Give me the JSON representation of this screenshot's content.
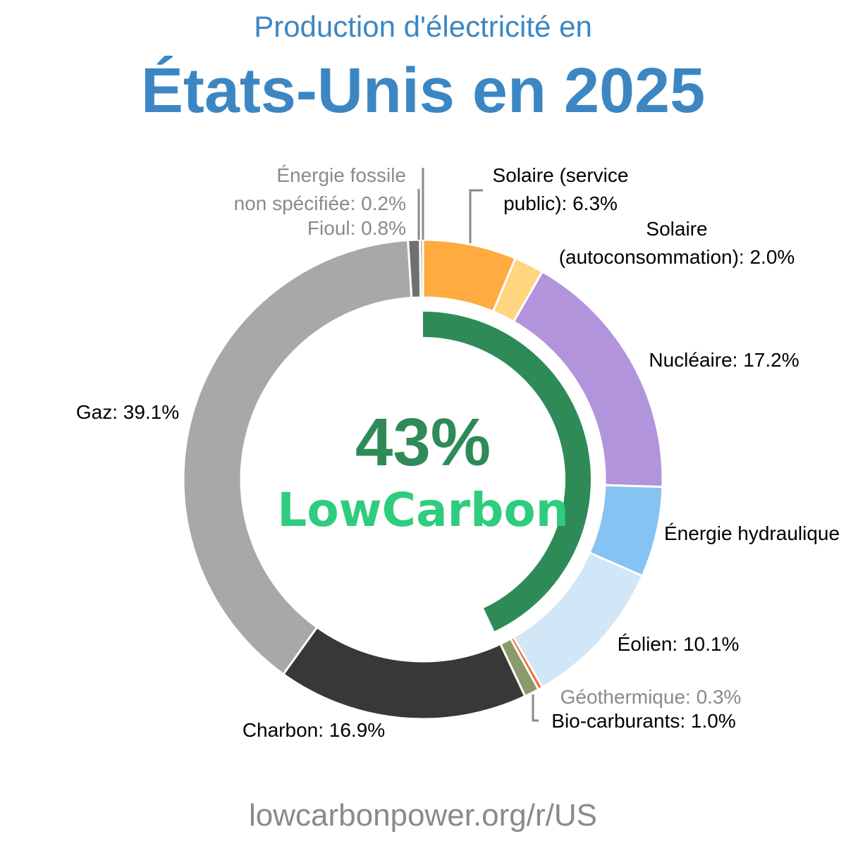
{
  "header": {
    "subtitle": "Production d'électricité en",
    "title": "États-Unis en 2025"
  },
  "center": {
    "value": "43%",
    "brand": "LowCarbon"
  },
  "footer": {
    "url": "lowcarbonpower.org/r/US"
  },
  "colors": {
    "title": "#3c87c3",
    "lowcarbon_ring": "#2e8b57",
    "brand_text": "#2ecc7f",
    "muted_label": "#8a8a8a"
  },
  "chart_data": {
    "type": "pie",
    "donut": true,
    "unit": "%",
    "low_carbon_share": 43,
    "slices": [
      {
        "label": "Solaire (service public): 6.3%",
        "lines": [
          "Solaire (service",
          "public): 6.3%"
        ],
        "value": 6.3,
        "color": "#ffab40"
      },
      {
        "label": "Solaire (autoconsommation): 2.0%",
        "lines": [
          "Solaire",
          "(autoconsommation): 2.0%"
        ],
        "value": 2.0,
        "color": "#ffd580"
      },
      {
        "label": "Nucléaire: 17.2%",
        "lines": [
          "Nucléaire: 17.2%"
        ],
        "value": 17.2,
        "color": "#b294dd"
      },
      {
        "label": "Énergie hydraulique",
        "lines": [
          "Énergie hydraulique"
        ],
        "value": 6.1,
        "color": "#87c3f2"
      },
      {
        "label": "Éolien: 10.1%",
        "lines": [
          "Éolien: 10.1%"
        ],
        "value": 10.1,
        "color": "#d1e6f6"
      },
      {
        "label": "Géothermique: 0.3%",
        "lines": [
          "Géothermique: 0.3%"
        ],
        "value": 0.3,
        "color": "#f26c2e"
      },
      {
        "label": "Bio-carburants: 1.0%",
        "lines": [
          "Bio-carburants: 1.0%"
        ],
        "value": 1.0,
        "color": "#8a9a6a"
      },
      {
        "label": "Charbon: 16.9%",
        "lines": [
          "Charbon: 16.9%"
        ],
        "value": 16.9,
        "color": "#383838"
      },
      {
        "label": "Gaz: 39.1%",
        "lines": [
          "Gaz: 39.1%"
        ],
        "value": 39.1,
        "color": "#a8a8a8"
      },
      {
        "label": "Fioul: 0.8%",
        "lines": [
          "Fioul: 0.8%"
        ],
        "value": 0.8,
        "color": "#707070"
      },
      {
        "label": "Énergie fossile non spécifiée: 0.2%",
        "lines": [
          "Énergie fossile",
          "non spécifiée: 0.2%"
        ],
        "value": 0.2,
        "color": "#9a9a9a"
      }
    ]
  }
}
